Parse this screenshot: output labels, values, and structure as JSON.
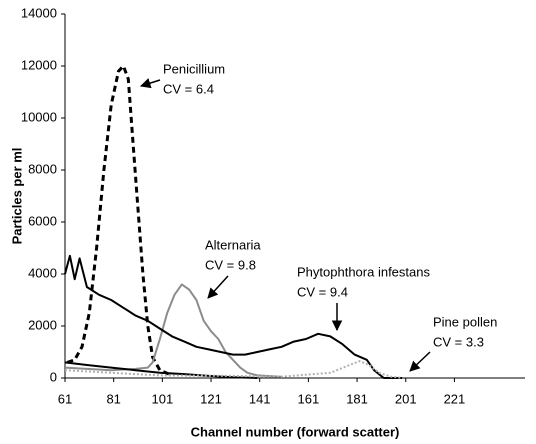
{
  "chart_data": {
    "type": "line",
    "y_label": "Particles per ml",
    "x_label": "Channel number (forward scatter)",
    "xlim": [
      61,
      250
    ],
    "xticks": [
      61,
      81,
      101,
      121,
      141,
      161,
      181,
      201,
      221
    ],
    "ylim": [
      0,
      14000
    ],
    "yticks": [
      0,
      2000,
      4000,
      6000,
      8000,
      10000,
      12000,
      14000
    ],
    "series": [
      {
        "name": "Penicillium",
        "label": "CV = 6.4",
        "color": "#000000",
        "style": "dashed",
        "x": [
          62,
          65,
          68,
          71,
          74,
          77,
          80,
          83,
          85,
          87,
          89,
          91,
          93,
          95,
          97,
          100,
          105
        ],
        "values": [
          600,
          700,
          1200,
          2500,
          5000,
          8000,
          10500,
          11800,
          12000,
          11500,
          9000,
          6500,
          4000,
          2000,
          800,
          300,
          100
        ]
      },
      {
        "name": "Alternaria",
        "label": "CV = 9.8",
        "color": "#8c8c8c",
        "style": "solid",
        "x": [
          61,
          70,
          80,
          90,
          95,
          97,
          100,
          103,
          106,
          109,
          112,
          115,
          118,
          121,
          124,
          127,
          130,
          133,
          136,
          140,
          150
        ],
        "values": [
          400,
          350,
          300,
          350,
          400,
          600,
          1500,
          2500,
          3200,
          3600,
          3400,
          3000,
          2200,
          1800,
          1500,
          1000,
          700,
          400,
          200,
          100,
          50
        ]
      },
      {
        "name": "Phytophthora infestans",
        "label": "CV = 9.4",
        "color": "#000000",
        "style": "solid",
        "x": [
          61,
          63,
          65,
          67,
          70,
          75,
          80,
          85,
          90,
          95,
          100,
          105,
          110,
          115,
          120,
          125,
          130,
          135,
          140,
          145,
          150,
          155,
          160,
          165,
          170,
          175,
          180,
          185,
          188,
          192,
          200
        ],
        "values": [
          4000,
          4700,
          3800,
          4600,
          3500,
          3200,
          3000,
          2700,
          2400,
          2200,
          1900,
          1600,
          1400,
          1200,
          1100,
          1000,
          900,
          900,
          1000,
          1100,
          1200,
          1400,
          1500,
          1700,
          1600,
          1300,
          900,
          700,
          300,
          0,
          0
        ]
      },
      {
        "color": "#000000",
        "style": "solid",
        "x": [
          61,
          70,
          80,
          90,
          100,
          110,
          120,
          130,
          140
        ],
        "values": [
          600,
          500,
          400,
          300,
          200,
          150,
          80,
          30,
          0
        ]
      },
      {
        "name": "Pine pollen",
        "label": "CV = 3.3",
        "color": "#b0b0b0",
        "style": "dotted",
        "x": [
          61,
          80,
          100,
          130,
          150,
          170,
          178,
          182,
          186,
          190,
          195,
          200
        ],
        "values": [
          300,
          200,
          100,
          80,
          50,
          200,
          500,
          650,
          500,
          200,
          50,
          0
        ]
      }
    ]
  }
}
